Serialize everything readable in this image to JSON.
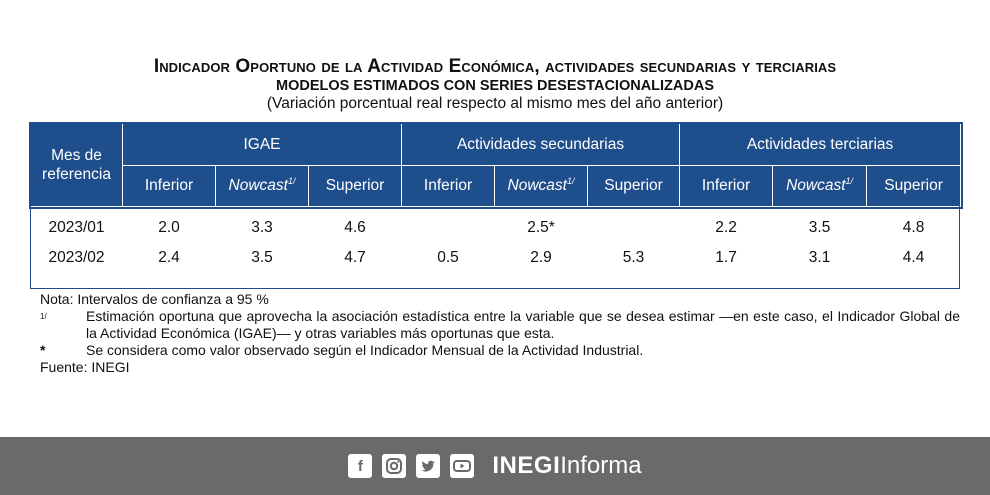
{
  "title": "Indicador Oportuno de la Actividad Económica, actividades secundarias y terciarias",
  "subtitle": "MODELOS ESTIMADOS CON SERIES DESESTACIONALIZADAS",
  "units": "(Variación porcentual real respecto al mismo mes del año anterior)",
  "table": {
    "first_col": "Mes de referencia",
    "groups": [
      "IGAE",
      "Actividades secundarias",
      "Actividades terciarias"
    ],
    "subheaders": {
      "inferior": "Inferior",
      "nowcast": "Nowcast",
      "nowcast_sup": "1/",
      "superior": "Superior"
    },
    "rows": [
      {
        "month": "2023/01",
        "values": [
          "2.0",
          "3.3",
          "4.6",
          "",
          "2.5*",
          "",
          "2.2",
          "3.5",
          "4.8"
        ]
      },
      {
        "month": "2023/02",
        "values": [
          "2.4",
          "3.5",
          "4.7",
          "0.5",
          "2.9",
          "5.3",
          "1.7",
          "3.1",
          "4.4"
        ]
      }
    ]
  },
  "notes": {
    "nota": "Nota:  Intervalos de confianza a 95 %",
    "n1_mark": "1/",
    "n1_text": "Estimación oportuna que aprovecha la asociación estadística entre la variable que se desea estimar —en este caso, el Indicador Global de la Actividad Económica (IGAE)— y otras variables más oportunas que esta.",
    "n2_mark": "*",
    "n2_text": "Se considera como valor observado según el Indicador Mensual de la Actividad Industrial.",
    "fuente": "Fuente: INEGI"
  },
  "footer": {
    "icons": [
      "facebook-icon",
      "instagram-icon",
      "twitter-icon",
      "youtube-icon"
    ],
    "brand_bold": "INEGI",
    "brand_rest": "Informa"
  },
  "colors": {
    "header_bg": "#1f4e8c",
    "footer_bg": "#6a6a6a"
  }
}
